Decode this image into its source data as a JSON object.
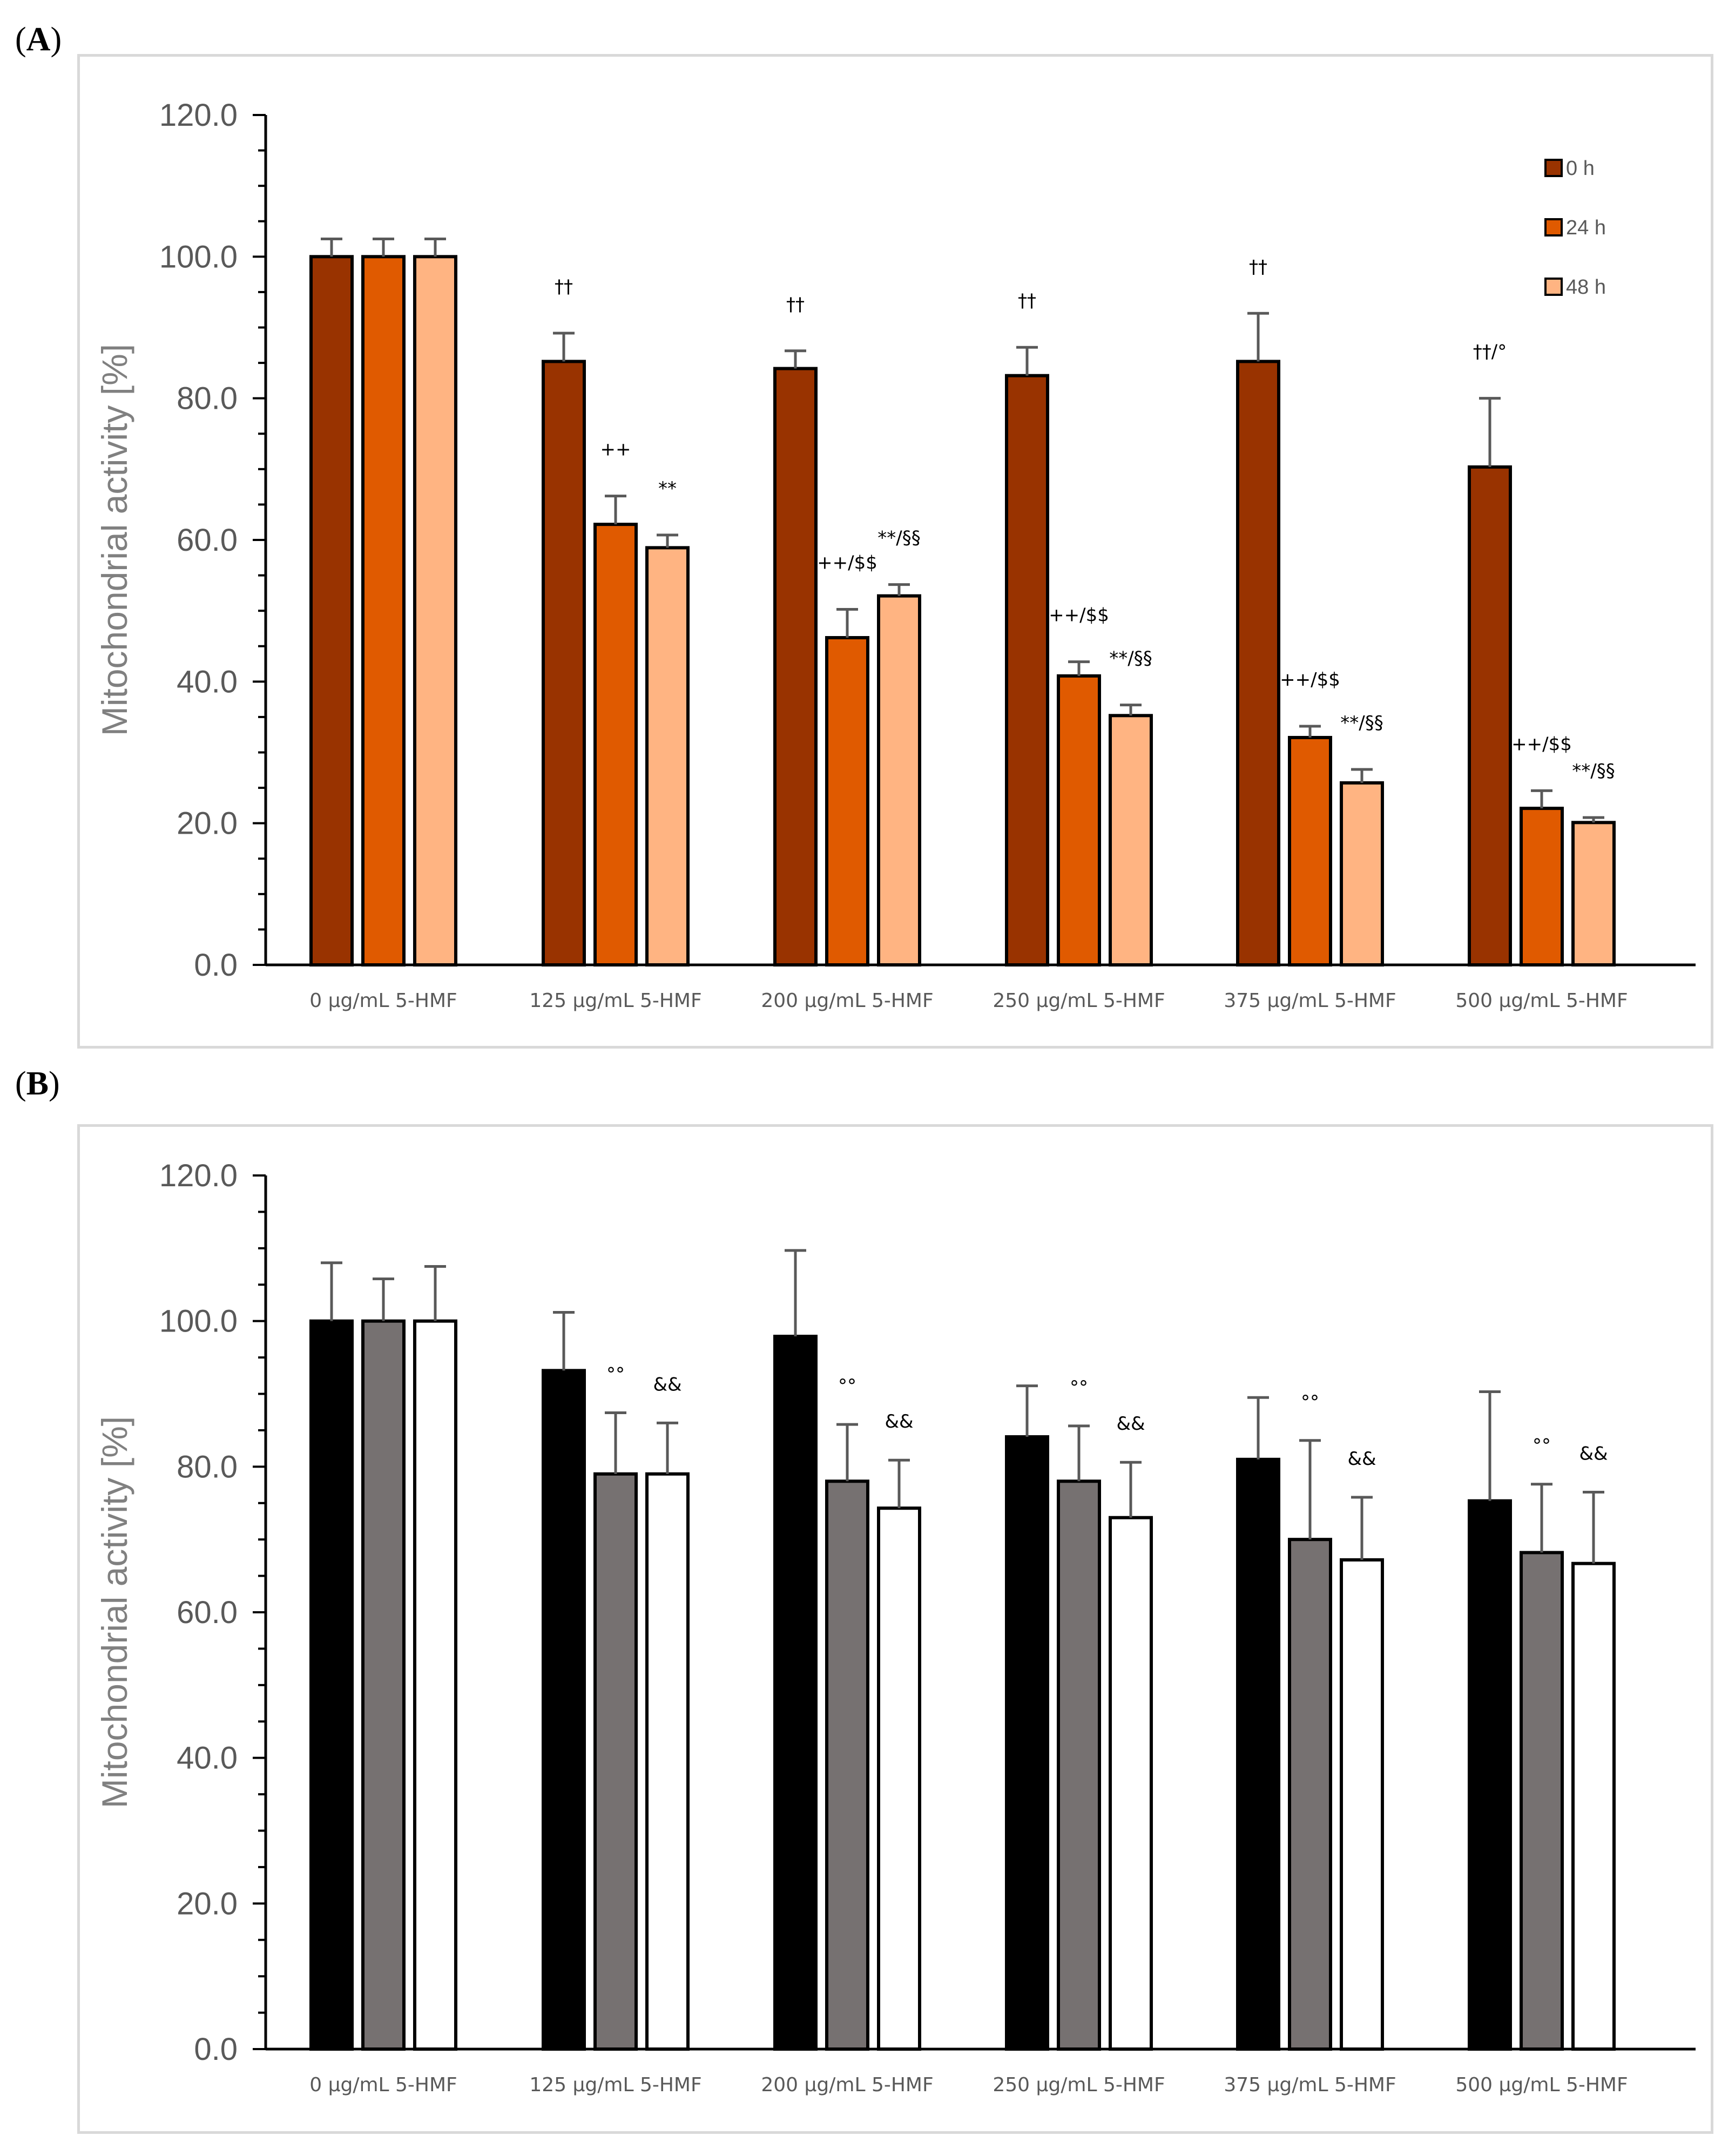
{
  "panel_a": {
    "label": "A"
  },
  "panel_b": {
    "label": "B"
  },
  "chart_data": [
    {
      "type": "bar",
      "ylabel": "Mitochondrial activity [%]",
      "ylim": [
        0,
        120
      ],
      "yticks": [
        "0.0",
        "20.0",
        "40.0",
        "60.0",
        "80.0",
        "100.0",
        "120.0"
      ],
      "categories": [
        "0 μg/mL 5-HMF",
        "125 μg/mL 5-HMF",
        "200 μg/mL 5-HMF",
        "250 μg/mL 5-HMF",
        "375 μg/mL 5-HMF",
        "500 μg/mL 5-HMF"
      ],
      "legend_position": "top-right",
      "series": [
        {
          "name": "0 h",
          "color": "#993300",
          "values": [
            100,
            85.2,
            84.2,
            83.2,
            85.2,
            70.3
          ],
          "errors": [
            2.5,
            4.0,
            2.5,
            4.0,
            6.8,
            9.7
          ],
          "annotations": [
            "",
            "††",
            "††",
            "††",
            "††",
            "††/°"
          ]
        },
        {
          "name": "24 h",
          "color": "#e05a00",
          "values": [
            100,
            62.2,
            46.2,
            40.8,
            32.1,
            22.1
          ],
          "errors": [
            2.5,
            4.0,
            4.0,
            2.0,
            1.6,
            2.5
          ],
          "annotations": [
            "",
            "++",
            "++/$$",
            "++/$$",
            "++/$$",
            "++/$$"
          ]
        },
        {
          "name": "48 h",
          "color": "#ffb482",
          "values": [
            100,
            58.9,
            52.1,
            35.2,
            25.7,
            20.1
          ],
          "errors": [
            2.5,
            1.8,
            1.6,
            1.5,
            1.9,
            0.7
          ],
          "annotations": [
            "",
            "**",
            "**/§§",
            "**/§§",
            "**/§§",
            "**/§§"
          ]
        }
      ]
    },
    {
      "type": "bar",
      "ylabel": "Mitochondrial activity [%]",
      "ylim": [
        0,
        120
      ],
      "yticks": [
        "0.0",
        "20.0",
        "40.0",
        "60.0",
        "80.0",
        "100.0",
        "120.0"
      ],
      "categories": [
        "0 μg/mL 5-HMF",
        "125 μg/mL 5-HMF",
        "200 μg/mL 5-HMF",
        "250 μg/mL 5-HMF",
        "375 μg/mL 5-HMF",
        "500 μg/mL 5-HMF"
      ],
      "series": [
        {
          "name": "0 h",
          "color": "#000000",
          "values": [
            100,
            93.2,
            97.9,
            84.1,
            81.0,
            75.3
          ],
          "errors": [
            8.0,
            8.0,
            11.8,
            7.0,
            8.5,
            15.0
          ],
          "annotations": [
            "",
            "",
            "",
            "",
            "",
            ""
          ]
        },
        {
          "name": "24 h",
          "color": "#767171",
          "values": [
            100,
            79.0,
            78.0,
            78.0,
            70.0,
            68.2
          ],
          "errors": [
            5.8,
            8.4,
            7.8,
            7.6,
            13.6,
            9.4
          ],
          "annotations": [
            "",
            "°°",
            "°°",
            "°°",
            "°°",
            "°°"
          ]
        },
        {
          "name": "48 h",
          "color": "#ffffff",
          "values": [
            100,
            79.0,
            74.3,
            73.0,
            67.2,
            66.7
          ],
          "errors": [
            7.5,
            7.0,
            6.6,
            7.6,
            8.6,
            9.8
          ],
          "annotations": [
            "",
            "&&",
            "&&",
            "&&",
            "&&",
            "&&"
          ]
        }
      ]
    }
  ]
}
